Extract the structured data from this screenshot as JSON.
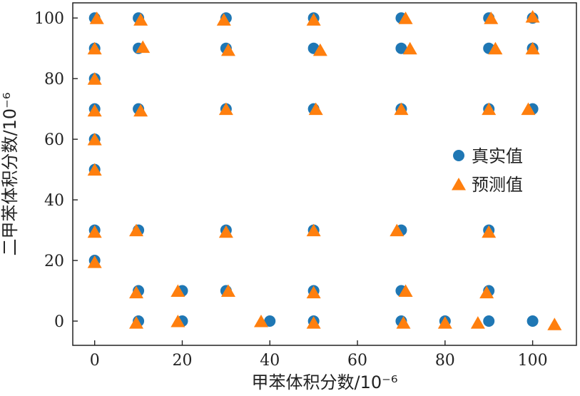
{
  "chart_data": {
    "type": "scatter",
    "xlabel": "甲苯体积分数/10⁻⁶",
    "ylabel": "二甲苯体积分数/10⁻⁶",
    "xlim": [
      -5,
      110
    ],
    "ylim": [
      -8,
      105
    ],
    "x_ticks": [
      "0",
      "20",
      "40",
      "60",
      "80",
      "100"
    ],
    "y_ticks": [
      "0",
      "20",
      "40",
      "60",
      "80",
      "100"
    ],
    "legend_position": "right",
    "grid": false,
    "series": [
      {
        "name": "真实值",
        "marker": "circle",
        "color": "#1f77b4",
        "points": [
          [
            0,
            100
          ],
          [
            10,
            100
          ],
          [
            30,
            100
          ],
          [
            50,
            100
          ],
          [
            70,
            100
          ],
          [
            90,
            100
          ],
          [
            100,
            100
          ],
          [
            0,
            90
          ],
          [
            10,
            90
          ],
          [
            30,
            90
          ],
          [
            50,
            90
          ],
          [
            70,
            90
          ],
          [
            90,
            90
          ],
          [
            100,
            90
          ],
          [
            0,
            80
          ],
          [
            0,
            70
          ],
          [
            10,
            70
          ],
          [
            30,
            70
          ],
          [
            50,
            70
          ],
          [
            70,
            70
          ],
          [
            90,
            70
          ],
          [
            100,
            70
          ],
          [
            0,
            60
          ],
          [
            0,
            50
          ],
          [
            0,
            30
          ],
          [
            10,
            30
          ],
          [
            30,
            30
          ],
          [
            50,
            30
          ],
          [
            70,
            30
          ],
          [
            90,
            30
          ],
          [
            0,
            20
          ],
          [
            10,
            10
          ],
          [
            20,
            10
          ],
          [
            30,
            10
          ],
          [
            50,
            10
          ],
          [
            70,
            10
          ],
          [
            90,
            10
          ],
          [
            10,
            0
          ],
          [
            20,
            0
          ],
          [
            40,
            0
          ],
          [
            50,
            0
          ],
          [
            70,
            0
          ],
          [
            80,
            0
          ],
          [
            90,
            0
          ],
          [
            100,
            0
          ]
        ]
      },
      {
        "name": "预测值",
        "marker": "triangle",
        "color": "#ff7f0e",
        "points": [
          [
            0.5,
            100
          ],
          [
            10.5,
            99.5
          ],
          [
            29.5,
            99.5
          ],
          [
            50,
            99.5
          ],
          [
            71,
            100
          ],
          [
            90.5,
            100
          ],
          [
            100,
            100.5
          ],
          [
            0,
            90
          ],
          [
            11,
            90.5
          ],
          [
            30.5,
            89.5
          ],
          [
            51.5,
            89.5
          ],
          [
            72,
            90
          ],
          [
            91.5,
            90
          ],
          [
            100,
            90
          ],
          [
            0,
            80
          ],
          [
            0,
            69.5
          ],
          [
            10.5,
            69.5
          ],
          [
            30,
            70
          ],
          [
            50.5,
            70
          ],
          [
            70,
            70
          ],
          [
            90,
            70
          ],
          [
            99,
            70
          ],
          [
            0,
            60
          ],
          [
            0,
            50
          ],
          [
            0,
            29.5
          ],
          [
            9.5,
            30
          ],
          [
            30,
            29.5
          ],
          [
            50,
            30
          ],
          [
            69,
            30
          ],
          [
            90,
            29.5
          ],
          [
            0,
            19.5
          ],
          [
            9.5,
            9.5
          ],
          [
            19,
            10
          ],
          [
            30.5,
            10
          ],
          [
            50,
            9.5
          ],
          [
            71,
            10
          ],
          [
            89.5,
            9.5
          ],
          [
            9.5,
            -0.5
          ],
          [
            19,
            0
          ],
          [
            38,
            0
          ],
          [
            50,
            -0.5
          ],
          [
            70.5,
            -0.5
          ],
          [
            80,
            -0.5
          ],
          [
            87.5,
            -0.5
          ],
          [
            105,
            -1
          ]
        ]
      }
    ]
  }
}
